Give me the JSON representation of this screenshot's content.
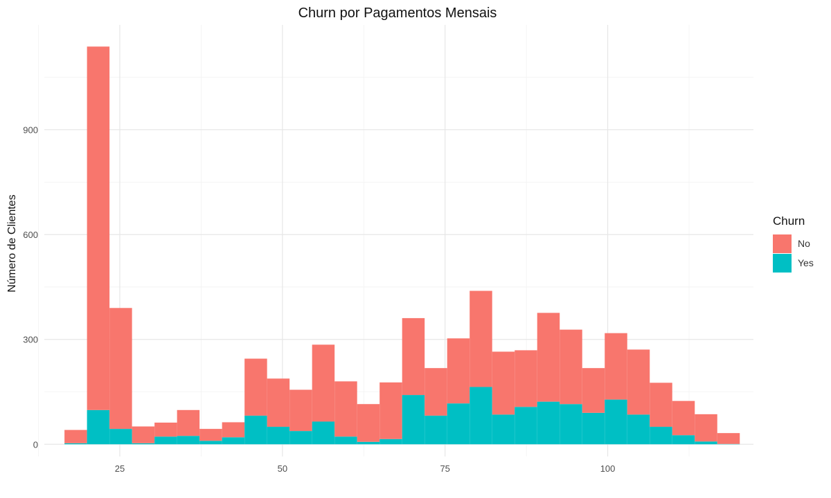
{
  "chart_data": {
    "type": "bar",
    "title": "Churn por Pagamentos Mensais",
    "xlabel": "",
    "ylabel": "Número de Clientes",
    "xlim": [
      13.4,
      122.4
    ],
    "ylim": [
      -35,
      1200
    ],
    "x_ticks": [
      25,
      50,
      75,
      100
    ],
    "y_ticks": [
      0,
      300,
      600,
      900
    ],
    "bin_width": 3.46,
    "x_start": 16.5,
    "legend": {
      "title": "Churn",
      "position": "right"
    },
    "series": [
      {
        "name": "No",
        "color": "#F8766D",
        "values": [
          38,
          1040,
          346,
          48,
          40,
          74,
          34,
          43,
          163,
          138,
          118,
          220,
          158,
          108,
          162,
          220,
          136,
          186,
          275,
          180,
          162,
          254,
          213,
          128,
          190,
          186,
          126,
          98,
          78,
          31
        ]
      },
      {
        "name": "Yes",
        "color": "#00BFC4",
        "values": [
          3,
          98,
          44,
          3,
          22,
          24,
          10,
          20,
          82,
          50,
          38,
          65,
          22,
          7,
          15,
          141,
          82,
          117,
          164,
          85,
          107,
          122,
          115,
          90,
          128,
          85,
          50,
          26,
          8,
          1
        ]
      }
    ]
  }
}
